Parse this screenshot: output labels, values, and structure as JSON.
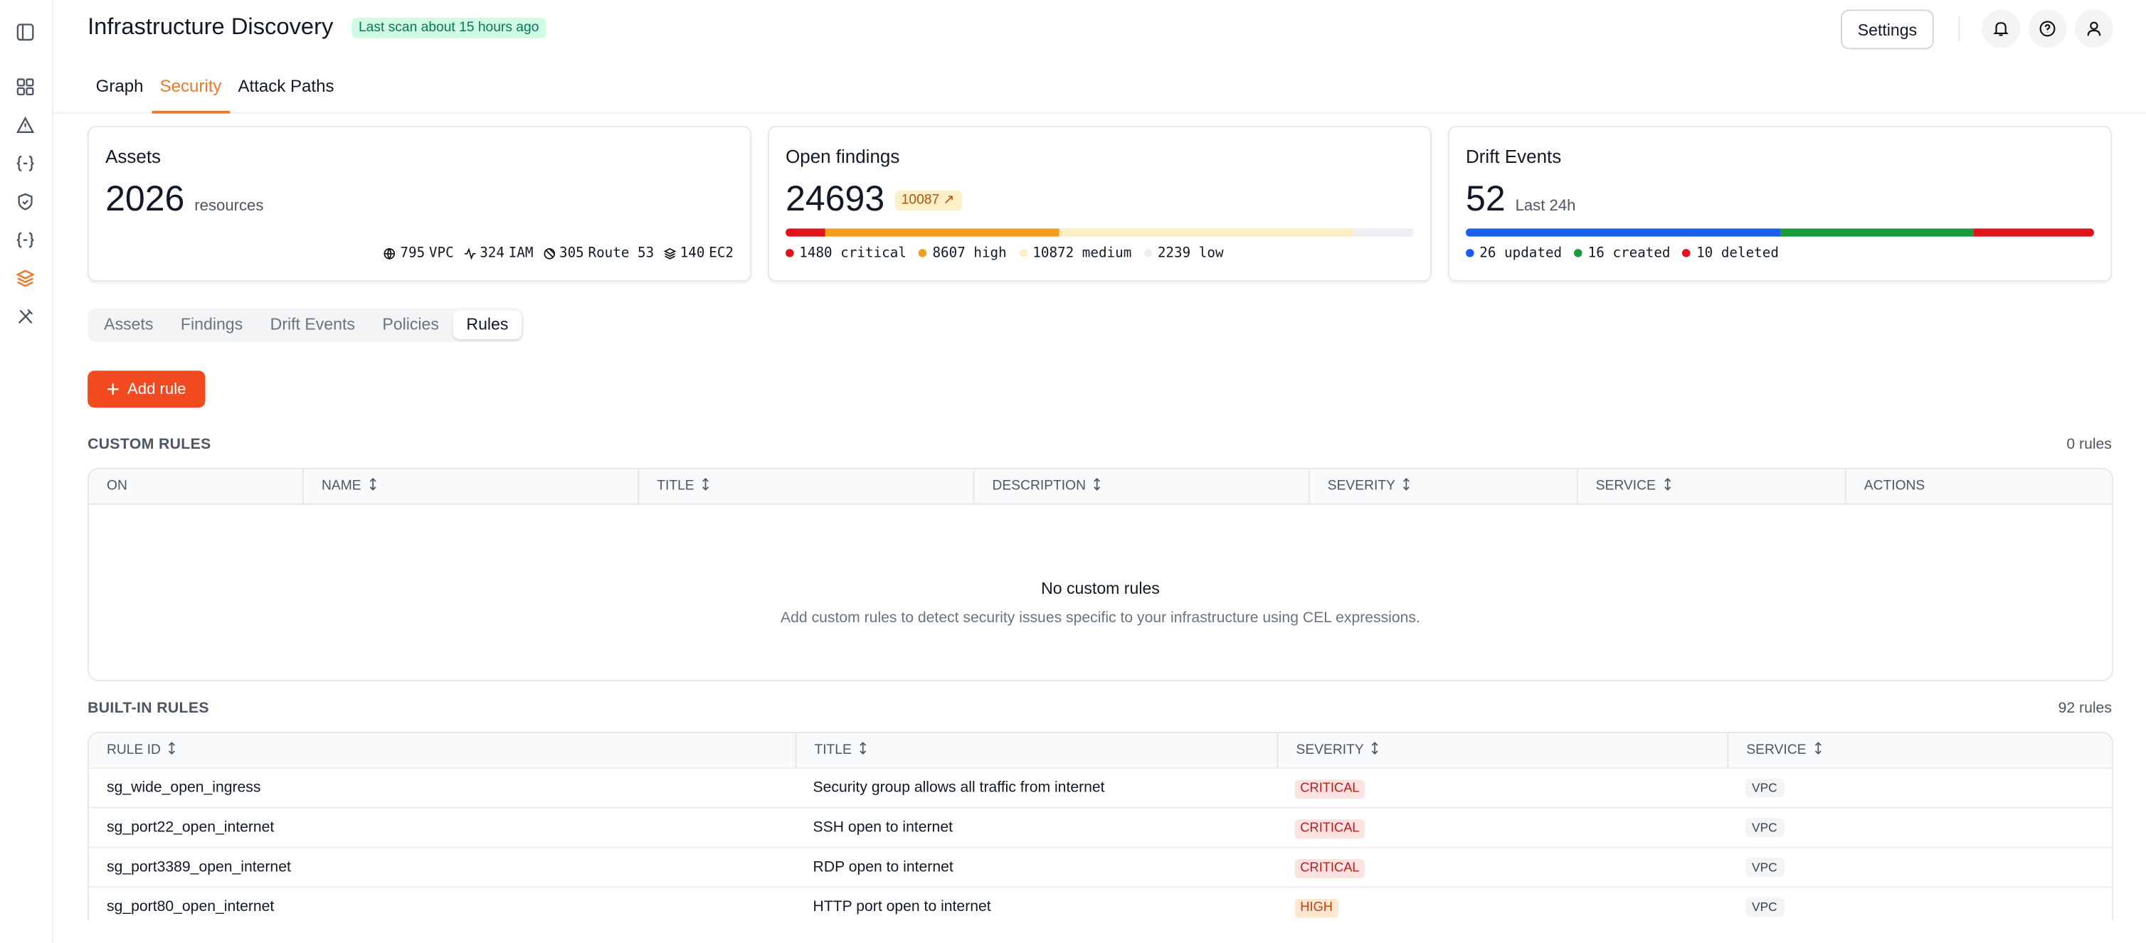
{
  "header": {
    "title": "Infrastructure Discovery",
    "scan_badge": "Last scan about 15 hours ago",
    "settings": "Settings"
  },
  "tabs": {
    "items": [
      "Graph",
      "Security",
      "Attack Paths"
    ],
    "active": 1
  },
  "cards": {
    "assets": {
      "title": "Assets",
      "value": "2026",
      "unit": "resources",
      "breakdown": [
        {
          "count": "795",
          "label": "VPC"
        },
        {
          "count": "324",
          "label": "IAM"
        },
        {
          "count": "305",
          "label": "Route 53"
        },
        {
          "count": "140",
          "label": "EC2"
        }
      ]
    },
    "findings": {
      "title": "Open findings",
      "value": "24693",
      "badge": "10087",
      "segments": [
        {
          "value": 1480,
          "name": "critical",
          "color": "#e0131b"
        },
        {
          "value": 8607,
          "name": "high",
          "color": "#f59e1b"
        },
        {
          "value": 10872,
          "name": "medium",
          "color": "#fdefc4"
        },
        {
          "value": 2239,
          "name": "low",
          "color": "#eceef1"
        }
      ]
    },
    "drift": {
      "title": "Drift Events",
      "value": "52",
      "unit": "Last 24h",
      "segments": [
        {
          "value": 26,
          "name": "updated",
          "color": "#1d5cf0"
        },
        {
          "value": 16,
          "name": "created",
          "color": "#1a9a3c"
        },
        {
          "value": 10,
          "name": "deleted",
          "color": "#e0131b"
        }
      ]
    }
  },
  "subtabs": {
    "items": [
      "Assets",
      "Findings",
      "Drift Events",
      "Policies",
      "Rules"
    ],
    "active": 4
  },
  "add_rule": "Add rule",
  "custom_rules": {
    "title": "CUSTOM RULES",
    "count": "0 rules",
    "columns": [
      "ON",
      "NAME",
      "TITLE",
      "DESCRIPTION",
      "SEVERITY",
      "SERVICE",
      "ACTIONS"
    ],
    "empty_title": "No custom rules",
    "empty_text": "Add custom rules to detect security issues specific to your infrastructure using CEL expressions."
  },
  "builtin_rules": {
    "title": "BUILT-IN RULES",
    "count": "92 rules",
    "columns": [
      "RULE ID",
      "TITLE",
      "SEVERITY",
      "SERVICE"
    ],
    "severity_styles": {
      "CRITICAL": {
        "bg": "#fde2e2",
        "fg": "#b91c1c"
      },
      "HIGH": {
        "bg": "#ffe7d1",
        "fg": "#c2410c"
      }
    },
    "rows": [
      [
        "sg_wide_open_ingress",
        "Security group allows all traffic from internet",
        "CRITICAL",
        "VPC"
      ],
      [
        "sg_port22_open_internet",
        "SSH open to internet",
        "CRITICAL",
        "VPC"
      ],
      [
        "sg_port3389_open_internet",
        "RDP open to internet",
        "CRITICAL",
        "VPC"
      ],
      [
        "sg_port80_open_internet",
        "HTTP port open to internet",
        "HIGH",
        "VPC"
      ]
    ]
  }
}
